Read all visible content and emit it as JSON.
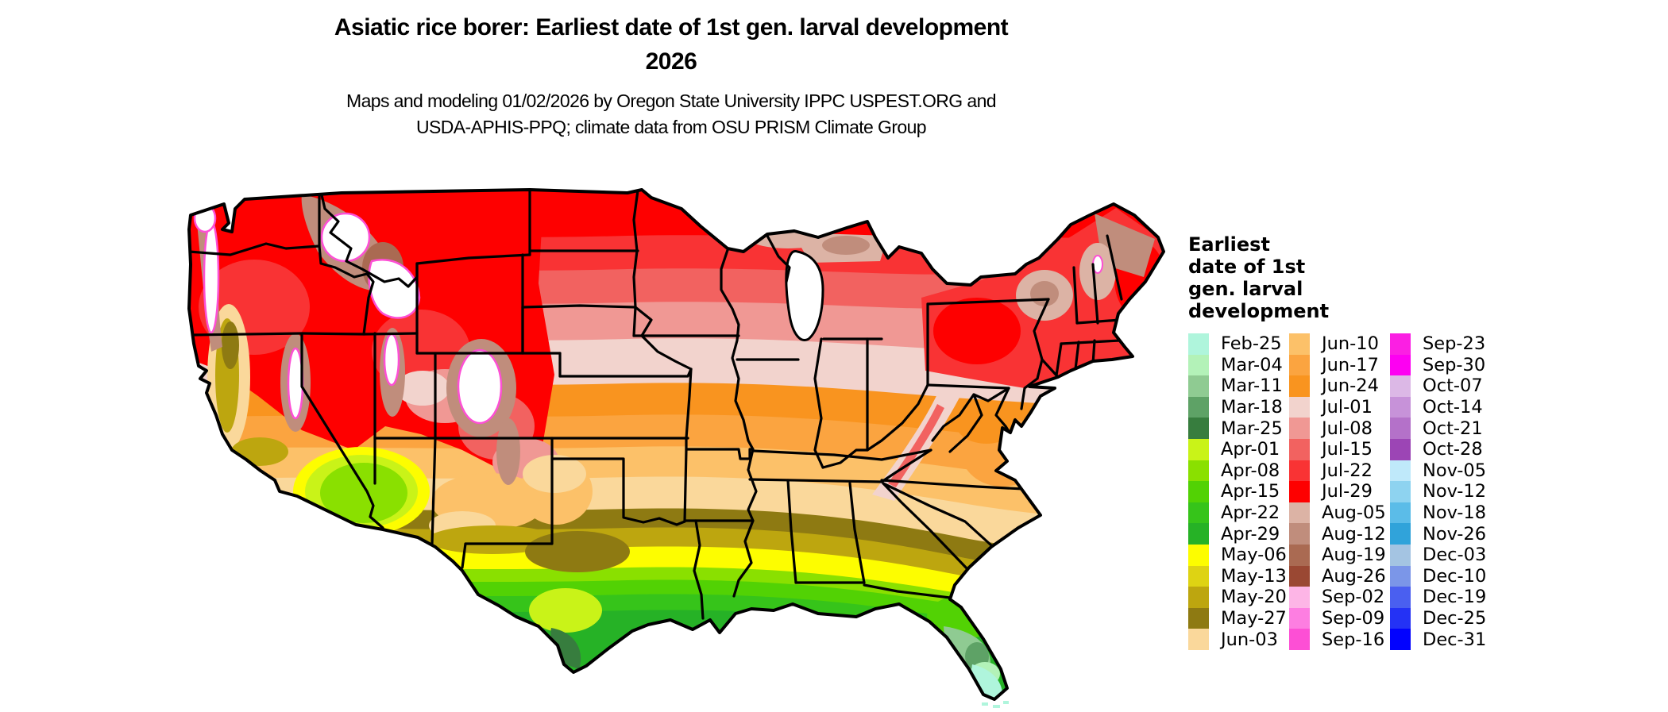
{
  "title": {
    "line1": "Asiatic rice borer: Earliest date of 1st gen. larval development",
    "line2": "2026"
  },
  "subtitle": {
    "line1": "Maps and modeling 01/02/2026 by Oregon State University IPPC USPEST.ORG and",
    "line2": "USDA-APHIS-PPQ; climate data from OSU PRISM Climate Group"
  },
  "legend": {
    "title_lines": [
      "Earliest",
      "date of 1st",
      "gen. larval",
      "development"
    ],
    "columns": [
      [
        {
          "label": "Feb-25",
          "color": "#aff5dc"
        },
        {
          "label": "Mar-04",
          "color": "#b3f2b8"
        },
        {
          "label": "Mar-11",
          "color": "#8fcb92"
        },
        {
          "label": "Mar-18",
          "color": "#5ea266"
        },
        {
          "label": "Mar-25",
          "color": "#377d3e"
        },
        {
          "label": "Apr-01",
          "color": "#c9f318"
        },
        {
          "label": "Apr-08",
          "color": "#8ae000"
        },
        {
          "label": "Apr-15",
          "color": "#52d204"
        },
        {
          "label": "Apr-22",
          "color": "#36c41a"
        },
        {
          "label": "Apr-29",
          "color": "#26b226"
        },
        {
          "label": "May-06",
          "color": "#fdfd00"
        },
        {
          "label": "May-13",
          "color": "#ded313"
        },
        {
          "label": "May-20",
          "color": "#bda60f"
        },
        {
          "label": "May-27",
          "color": "#8e7a12"
        },
        {
          "label": "Jun-03",
          "color": "#fad89b"
        }
      ],
      [
        {
          "label": "Jun-10",
          "color": "#fcc169"
        },
        {
          "label": "Jun-17",
          "color": "#fba440"
        },
        {
          "label": "Jun-24",
          "color": "#f9941f"
        },
        {
          "label": "Jul-01",
          "color": "#f2d3cd"
        },
        {
          "label": "Jul-08",
          "color": "#f09894"
        },
        {
          "label": "Jul-15",
          "color": "#f26260"
        },
        {
          "label": "Jul-22",
          "color": "#f93334"
        },
        {
          "label": "Jul-29",
          "color": "#fe0000"
        },
        {
          "label": "Aug-05",
          "color": "#dcb3a5"
        },
        {
          "label": "Aug-12",
          "color": "#c08d7c"
        },
        {
          "label": "Aug-19",
          "color": "#aa6a52"
        },
        {
          "label": "Aug-26",
          "color": "#9a4833"
        },
        {
          "label": "Sep-02",
          "color": "#fdb5e6"
        },
        {
          "label": "Sep-09",
          "color": "#fd7ee1"
        },
        {
          "label": "Sep-16",
          "color": "#fd4fd5"
        }
      ],
      [
        {
          "label": "Sep-23",
          "color": "#fb1fe3"
        },
        {
          "label": "Sep-30",
          "color": "#fd00f2"
        },
        {
          "label": "Oct-07",
          "color": "#dcb8e6"
        },
        {
          "label": "Oct-14",
          "color": "#c792d9"
        },
        {
          "label": "Oct-21",
          "color": "#b471c9"
        },
        {
          "label": "Oct-28",
          "color": "#9c45b5"
        },
        {
          "label": "Nov-05",
          "color": "#bfe9fa"
        },
        {
          "label": "Nov-12",
          "color": "#8ed3f0"
        },
        {
          "label": "Nov-18",
          "color": "#5bbce8"
        },
        {
          "label": "Nov-26",
          "color": "#30a3da"
        },
        {
          "label": "Dec-03",
          "color": "#a4c4e2"
        },
        {
          "label": "Dec-10",
          "color": "#7b96e8"
        },
        {
          "label": "Dec-19",
          "color": "#4a5ff0"
        },
        {
          "label": "Dec-25",
          "color": "#2432f5"
        },
        {
          "label": "Dec-31",
          "color": "#0202fe"
        }
      ]
    ]
  },
  "map": {
    "region": "Continental United States",
    "border_color": "#000000",
    "water_color": "#ffffff"
  }
}
